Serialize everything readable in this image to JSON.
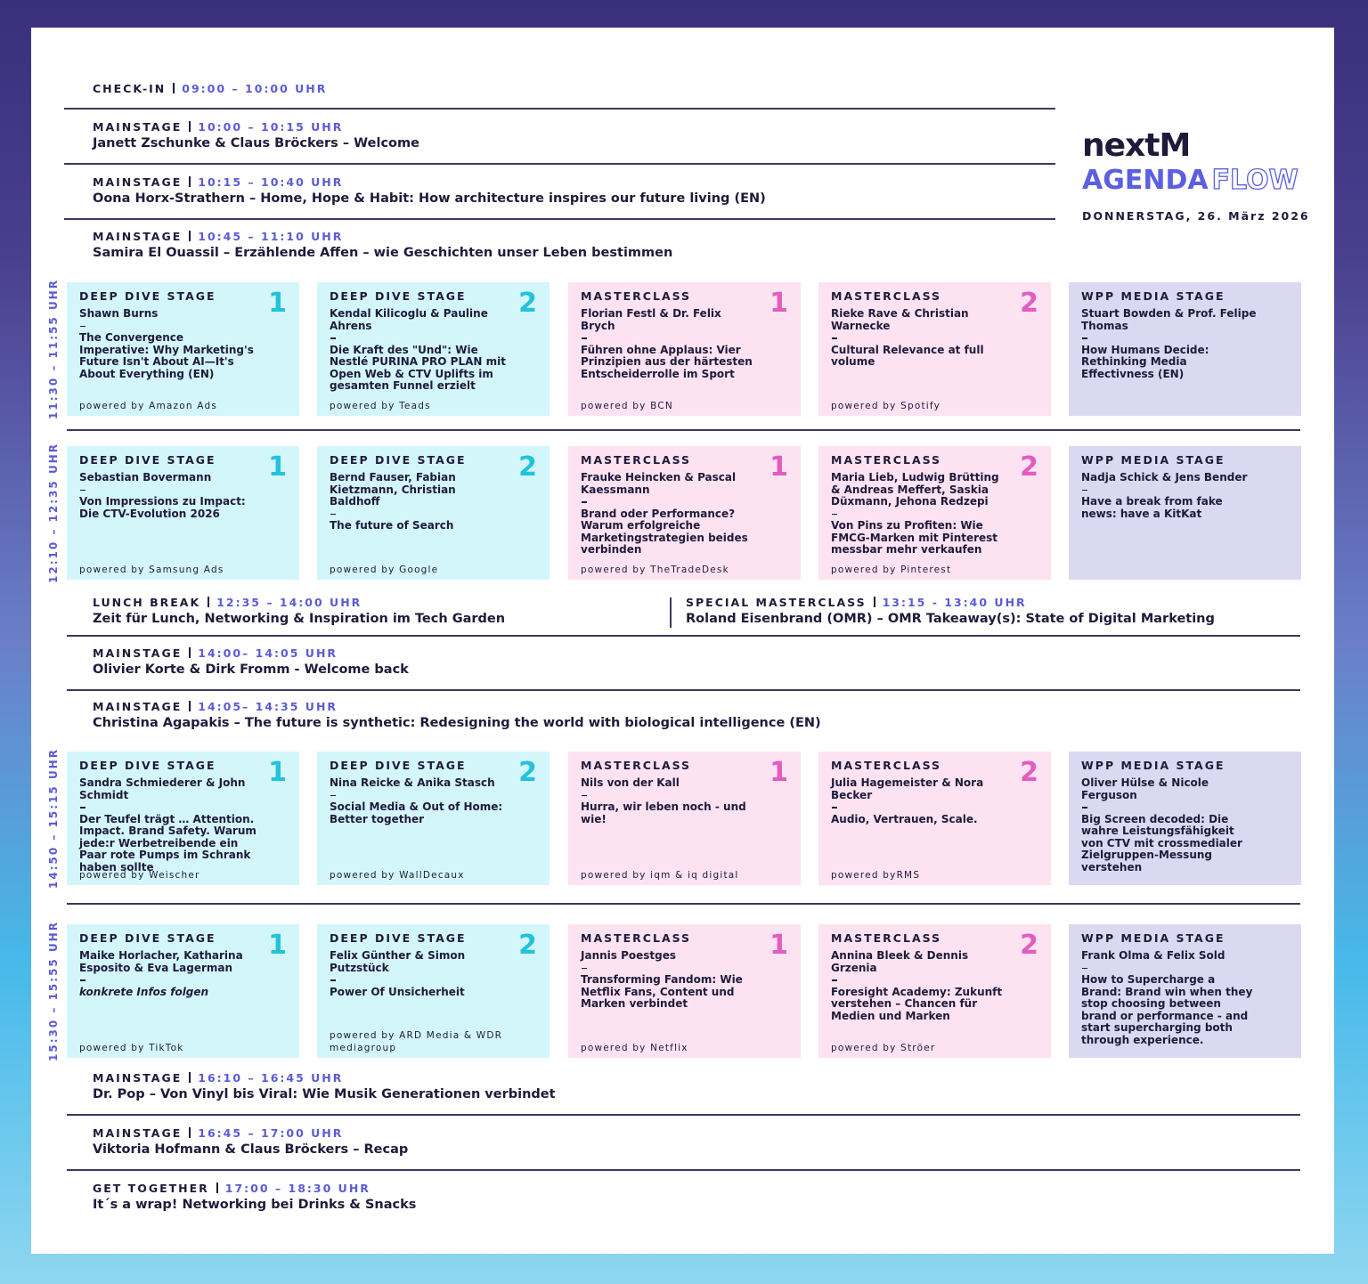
{
  "header": {
    "logo": "nextM",
    "title": "AGENDA",
    "title_outline": "FLOW",
    "date": "DONNERSTAG, 26. März 2026"
  },
  "agenda": [
    {
      "stage": "CHECK-IN",
      "time": "09:00 – 10:00 UHR"
    },
    {
      "stage": "MAINSTAGE",
      "time": "10:00 – 10:15 UHR",
      "title": "Janett Zschunke & Claus Bröckers – Welcome"
    },
    {
      "stage": "MAINSTAGE",
      "time": "10:15 – 10:40 UHR",
      "title": "Oona Horx-Strathern – Home, Hope & Habit: How architecture inspires our future living (EN)"
    },
    {
      "stage": "MAINSTAGE",
      "time": "10:45 – 11:10 UHR",
      "title": "Samira El Ouassil – Erzählende Affen – wie Geschichten unser Leben bestimmen"
    },
    {
      "time": "11:30 – 11:55 UHR",
      "cards": [
        {
          "stage": "DEEP DIVE STAGE",
          "number": 1,
          "speakers": "Shawn Burns",
          "talk": "The Convergence Imperative: Why Marketing's Future Isn't About AI—It's About Everything (EN)",
          "powered": "powered by Amazon Ads",
          "color": "#d3f6fb",
          "number_color": "#22c3da"
        },
        {
          "stage": "DEEP DIVE STAGE",
          "number": 2,
          "speakers": "Kendal Kilicoglu & Pauline Ahrens",
          "talk": "Die Kraft des \"Und\": Wie Nestlé PURINA PRO PLAN mit Open Web & CTV Uplifts im gesamten Funnel erzielt",
          "powered": "powered by Teads",
          "color": "#d3f6fb",
          "number_color": "#22c3da"
        },
        {
          "stage": "MASTERCLASS",
          "number": 1,
          "speakers": "Florian Festl & Dr. Felix Brych",
          "talk": "Führen ohne Applaus: Vier Prinzipien aus der härtesten Entscheiderrolle im Sport",
          "powered": "powered by BCN",
          "color": "#fde2f2",
          "number_color": "#e35cc0"
        },
        {
          "stage": "MASTERCLASS",
          "number": 2,
          "speakers": "Rieke Rave & Christian Warnecke",
          "talk": "Cultural Relevance at full volume",
          "powered": "powered by Spotify",
          "color": "#fde2f2",
          "number_color": "#e35cc0"
        },
        {
          "stage": "WPP MEDIA STAGE",
          "speakers": "Stuart Bowden & Prof. Felipe Thomas",
          "talk": "How Humans Decide: Rethinking Media Effectivness (EN)",
          "color": "#dbd9f1"
        }
      ]
    },
    {
      "time": "12:10 – 12:35 UHR",
      "cards": [
        {
          "stage": "DEEP DIVE STAGE",
          "number": 1,
          "speakers": "Sebastian Bovermann",
          "talk": "Von Impressions zu Impact: Die CTV-Evolution 2026",
          "powered": "powered by Samsung Ads",
          "color": "#d3f6fb",
          "number_color": "#22c3da"
        },
        {
          "stage": "DEEP DIVE STAGE",
          "number": 2,
          "speakers": "Bernd Fauser, Fabian Kietzmann, Christian Baldhoff",
          "talk": "The future of Search",
          "powered": "powered by Google",
          "color": "#d3f6fb",
          "number_color": "#22c3da"
        },
        {
          "stage": "MASTERCLASS",
          "number": 1,
          "speakers": "Frauke Heincken & Pascal Kaessmann",
          "talk": "Brand oder Performance? Warum erfolgreiche Marketingstrategien beides verbinden",
          "powered": "powered by TheTradeDesk",
          "color": "#fde2f2",
          "number_color": "#e35cc0"
        },
        {
          "stage": "MASTERCLASS",
          "number": 2,
          "speakers": "Maria Lieb, Ludwig Brütting & Andreas Meffert, Saskia Düxmann, Jehona Redzepi",
          "talk": "Von Pins zu Profiten: Wie FMCG-Marken mit Pinterest messbar mehr verkaufen",
          "powered": "powered by Pinterest",
          "color": "#fde2f2",
          "number_color": "#e35cc0"
        },
        {
          "stage": "WPP MEDIA STAGE",
          "speakers": "Nadja Schick & Jens Bender",
          "talk": "Have a break from fake news: have a KitKat",
          "color": "#dbd9f1"
        }
      ]
    },
    {
      "columns": [
        {
          "stage": "LUNCH BREAK",
          "time": "12:35 – 14:00 UHR",
          "title": "Zeit für Lunch, Networking & Inspiration im Tech Garden"
        },
        {
          "stage": "SPECIAL MASTERCLASS",
          "time": "13:15 - 13:40 UHR",
          "title": "Roland Eisenbrand (OMR) – OMR Takeaway(s): State of Digital Marketing"
        }
      ]
    },
    {
      "stage": "MAINSTAGE",
      "time": "14:00– 14:05 UHR",
      "title": "Olivier Korte & Dirk Fromm - Welcome back"
    },
    {
      "stage": "MAINSTAGE",
      "time": "14:05– 14:35 UHR",
      "title": "Christina Agapakis – The future is synthetic: Redesigning the world with biological intelligence (EN)"
    },
    {
      "time": "14:50 – 15:15 UHR",
      "cards": [
        {
          "stage": "DEEP DIVE STAGE",
          "number": 1,
          "speakers": "Sandra Schmiederer & John Schmidt",
          "talk": "Der Teufel trägt … Attention. Impact. Brand Safety. Warum jede:r Werbetreibende ein Paar rote Pumps im Schrank haben sollte",
          "powered": "powered by Weischer",
          "color": "#d3f6fb",
          "number_color": "#22c3da"
        },
        {
          "stage": "DEEP DIVE STAGE",
          "number": 2,
          "speakers": "Nina Reicke & Anika Stasch",
          "talk": "Social Media & Out of Home: Better together",
          "powered": "powered by WallDecaux",
          "color": "#d3f6fb",
          "number_color": "#22c3da"
        },
        {
          "stage": "MASTERCLASS",
          "number": 1,
          "speakers": "Nils von der Kall",
          "talk": "Hurra, wir leben noch - und wie!",
          "powered": "powered by iqm & iq digital",
          "color": "#fde2f2",
          "number_color": "#e35cc0"
        },
        {
          "stage": "MASTERCLASS",
          "number": 2,
          "speakers": "Julia Hagemeister & Nora Becker",
          "talk": "Audio, Vertrauen, Scale.",
          "powered": "powered byRMS",
          "color": "#fde2f2",
          "number_color": "#e35cc0"
        },
        {
          "stage": "WPP MEDIA STAGE",
          "speakers": "Oliver Hülse & Nicole Ferguson",
          "talk": "Big Screen decoded: Die wahre Leistungsfähigkeit von CTV mit crossmedialer Zielgruppen-Messung verstehen",
          "color": "#dbd9f1"
        }
      ]
    },
    {
      "time": "15:30 – 15:55 UHR",
      "cards": [
        {
          "stage": "DEEP DIVE STAGE",
          "number": 1,
          "speakers": "Maike Horlacher, Katharina Esposito & Eva Lagerman",
          "talk": "konkrete Infos folgen",
          "italic": true,
          "powered": "powered by TikTok",
          "color": "#d3f6fb",
          "number_color": "#22c3da"
        },
        {
          "stage": "DEEP DIVE STAGE",
          "number": 2,
          "speakers": "Felix Günther & Simon Putzstück",
          "talk": "Power Of Unsicherheit",
          "powered": "powered by ARD Media & WDR mediagroup",
          "color": "#d3f6fb",
          "number_color": "#22c3da"
        },
        {
          "stage": "MASTERCLASS",
          "number": 1,
          "speakers": "Jannis Poestges",
          "talk": "Transforming Fandom: Wie Netflix Fans, Content und Marken verbindet",
          "powered": "powered by Netflix",
          "color": "#fde2f2",
          "number_color": "#e35cc0"
        },
        {
          "stage": "MASTERCLASS",
          "number": 2,
          "speakers": "Annina Bleek & Dennis Grzenia",
          "talk": "Foresight Academy: Zukunft verstehen – Chancen für Medien und Marken",
          "powered": "powered by Ströer",
          "color": "#fde2f2",
          "number_color": "#e35cc0"
        },
        {
          "stage": "WPP MEDIA STAGE",
          "speakers": "Frank Olma & Felix Sold",
          "talk": "How to Supercharge a Brand: Brand win when they stop choosing between brand or performance - and start supercharging both through experience.",
          "color": "#dbd9f1"
        }
      ]
    },
    {
      "stage": "MAINSTAGE",
      "time": "16:10 – 16:45 UHR",
      "title": "Dr. Pop – Von Vinyl bis Viral: Wie Musik Generationen verbindet"
    },
    {
      "stage": "MAINSTAGE",
      "time": "16:45 – 17:00 UHR",
      "title": "Viktoria Hofmann & Claus Bröckers – Recap"
    },
    {
      "stage": "GET TOGETHER",
      "time": "17:00 – 18:30 UHR",
      "title": "It´s a wrap! Networking bei Drinks & Snacks"
    }
  ]
}
